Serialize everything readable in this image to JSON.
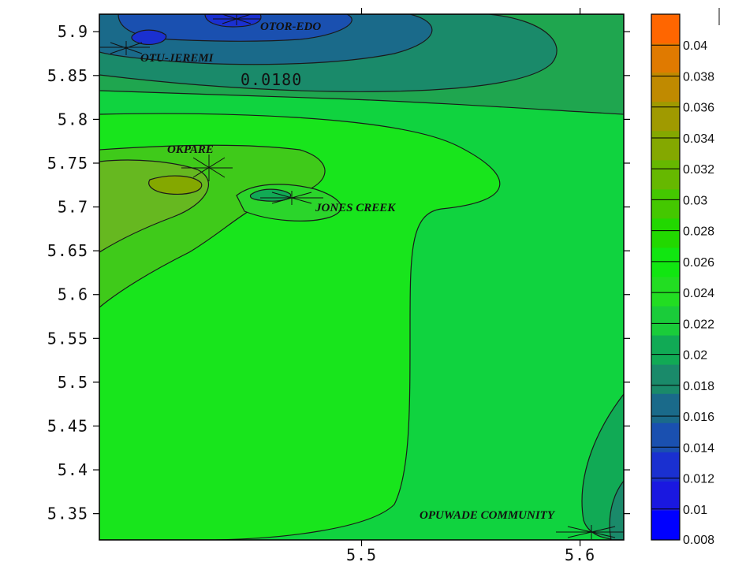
{
  "map": {
    "x_ticks": [
      "5.5",
      "5.6"
    ],
    "y_ticks": [
      "5.9",
      "5.85",
      "5.8",
      "5.75",
      "5.7",
      "5.65",
      "5.6",
      "5.55",
      "5.5",
      "5.45",
      "5.4",
      "5.35"
    ],
    "x_range": [
      5.38,
      5.62
    ],
    "y_range": [
      5.32,
      5.92
    ],
    "colorbar": {
      "range": [
        0.008,
        0.042
      ],
      "tick_labels": [
        "0.04",
        "0.038",
        "0.036",
        "0.034",
        "0.032",
        "0.03",
        "0.028",
        "0.026",
        "0.024",
        "0.022",
        "0.02",
        "0.018",
        "0.016",
        "0.014",
        "0.012",
        "0.01",
        "0.008"
      ],
      "colors": [
        "#FF6600",
        "#E07A00",
        "#C08A00",
        "#A09A00",
        "#84A800",
        "#66B800",
        "#44C800",
        "#22D800",
        "#11E611",
        "#22DD22",
        "#1ACC3A",
        "#11AA55",
        "#1A8A6A",
        "#1A6A8A",
        "#1A50B0",
        "#1A30D0",
        "#1A18E0",
        "#0000FF"
      ]
    },
    "contour_label": "0.0180",
    "places": [
      {
        "label": "OTOR-EDO"
      },
      {
        "label": "OTU-JEREMI"
      },
      {
        "label": "OKPARE"
      },
      {
        "label": "JONES CREEK"
      },
      {
        "label": "OPUWADE COMMUNITY"
      }
    ]
  }
}
